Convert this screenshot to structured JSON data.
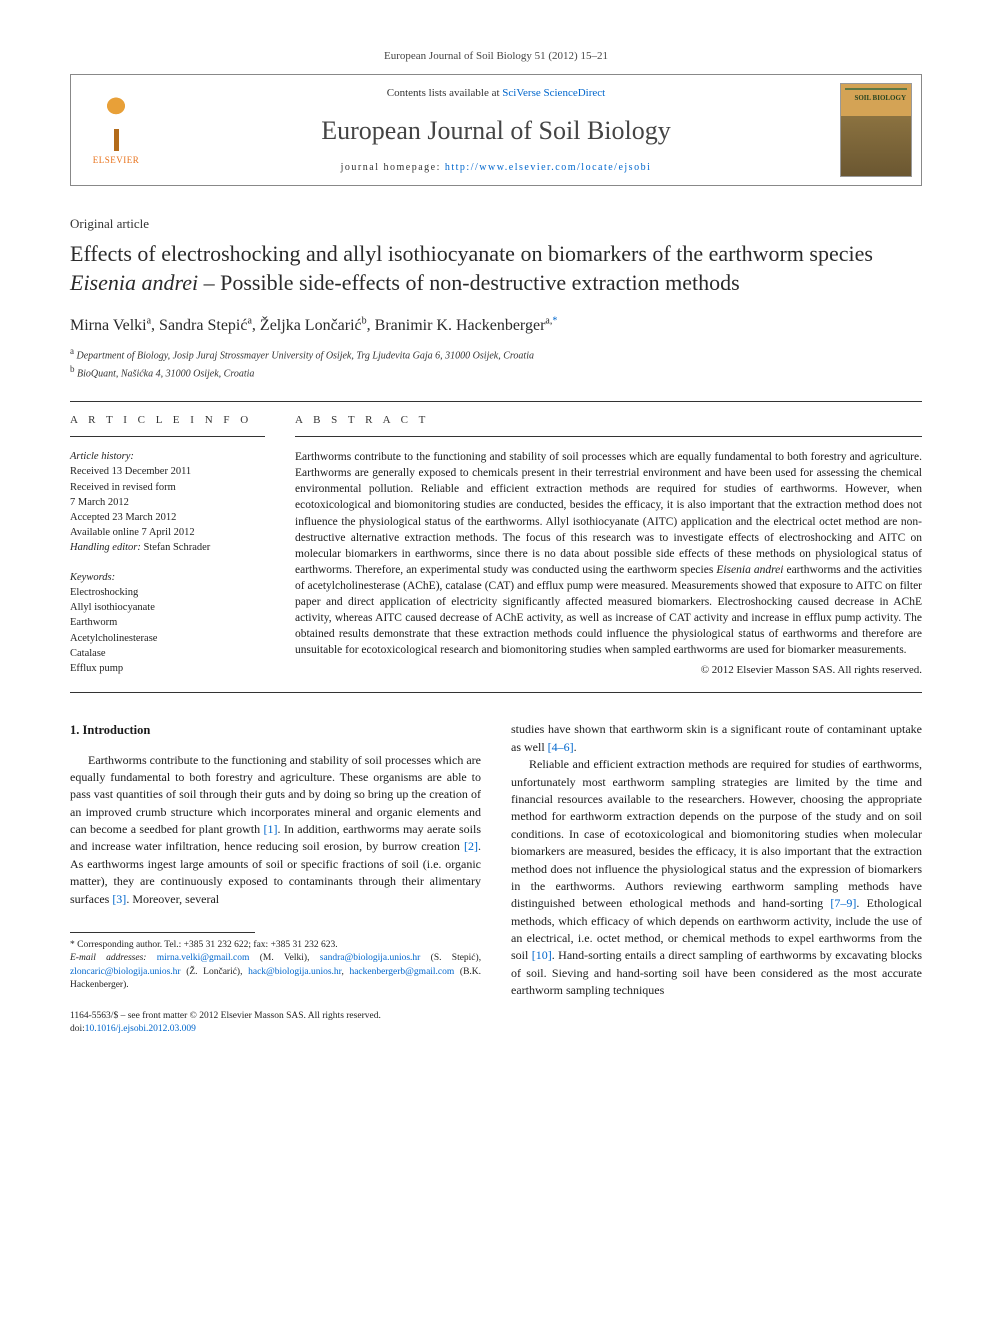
{
  "citation": "European Journal of Soil Biology 51 (2012) 15–21",
  "header": {
    "contents_prefix": "Contents lists available at ",
    "contents_link": "SciVerse ScienceDirect",
    "journal_name": "European Journal of Soil Biology",
    "homepage_prefix": "journal homepage: ",
    "homepage_url": "http://www.elsevier.com/locate/ejsobi",
    "publisher": "ELSEVIER",
    "cover_text": "SOIL\nBIOLOGY"
  },
  "article": {
    "type": "Original article",
    "title_pre": "Effects of electroshocking and allyl isothiocyanate on biomarkers of the earthworm species ",
    "title_italic": "Eisenia andrei",
    "title_post": " – Possible side-effects of non-destructive extraction methods",
    "authors_html": "Mirna Velki",
    "authors": [
      {
        "name": "Mirna Velki",
        "sup": "a"
      },
      {
        "name": "Sandra Stepić",
        "sup": "a"
      },
      {
        "name": "Željka Lončarić",
        "sup": "b"
      },
      {
        "name": "Branimir K. Hackenberger",
        "sup": "a,",
        "corr": "*"
      }
    ],
    "affiliations": [
      {
        "sup": "a",
        "text": "Department of Biology, Josip Juraj Strossmayer University of Osijek, Trg Ljudevita Gaja 6, 31000 Osijek, Croatia"
      },
      {
        "sup": "b",
        "text": "BioQuant, Našićka 4, 31000 Osijek, Croatia"
      }
    ]
  },
  "info": {
    "section_label": "A R T I C L E   I N F O",
    "history_label": "Article history:",
    "history": [
      "Received 13 December 2011",
      "Received in revised form",
      "7 March 2012",
      "Accepted 23 March 2012",
      "Available online 7 April 2012"
    ],
    "handling_prefix": "Handling editor: ",
    "handling_editor": "Stefan Schrader",
    "keywords_label": "Keywords:",
    "keywords": [
      "Electroshocking",
      "Allyl isothiocyanate",
      "Earthworm",
      "Acetylcholinesterase",
      "Catalase",
      "Efflux pump"
    ]
  },
  "abstract": {
    "section_label": "A B S T R A C T",
    "text_1": "Earthworms contribute to the functioning and stability of soil processes which are equally fundamental to both forestry and agriculture. Earthworms are generally exposed to chemicals present in their terrestrial environment and have been used for assessing the chemical environmental pollution. Reliable and efficient extraction methods are required for studies of earthworms. However, when ecotoxicological and biomonitoring studies are conducted, besides the efficacy, it is also important that the extraction method does not influence the physiological status of the earthworms. Allyl isothiocyanate (AITC) application and the electrical octet method are non-destructive alternative extraction methods. The focus of this research was to investigate effects of electroshocking and AITC on molecular biomarkers in earthworms, since there is no data about possible side effects of these methods on physiological status of earthworms. Therefore, an experimental study was conducted using the earthworm species ",
    "text_italic": "Eisenia andrei",
    "text_2": " earthworms and the activities of acetylcholinesterase (AChE), catalase (CAT) and efflux pump were measured. Measurements showed that exposure to AITC on filter paper and direct application of electricity significantly affected measured biomarkers. Electroshocking caused decrease in AChE activity, whereas AITC caused decrease of AChE activity, as well as increase of CAT activity and increase in efflux pump activity. The obtained results demonstrate that these extraction methods could influence the physiological status of earthworms and therefore are unsuitable for ecotoxicological research and biomonitoring studies when sampled earthworms are used for biomarker measurements.",
    "copyright": "© 2012 Elsevier Masson SAS. All rights reserved."
  },
  "body": {
    "heading": "1. Introduction",
    "col1_p1_a": "Earthworms contribute to the functioning and stability of soil processes which are equally fundamental to both forestry and agriculture. These organisms are able to pass vast quantities of soil through their guts and by doing so bring up the creation of an improved crumb structure which incorporates mineral and organic elements and can become a seedbed for plant growth ",
    "ref1": "[1]",
    "col1_p1_b": ". In addition, earthworms may aerate soils and increase water infiltration, hence reducing soil erosion, by burrow creation ",
    "ref2": "[2]",
    "col1_p1_c": ". As earthworms ingest large amounts of soil or specific fractions of soil (i.e. organic matter), they are continuously exposed to contaminants through their alimentary surfaces ",
    "ref3": "[3]",
    "col1_p1_d": ". Moreover, several",
    "col2_p1_a": "studies have shown that earthworm skin is a significant route of contaminant uptake as well ",
    "ref46": "[4–6]",
    "col2_p1_b": ".",
    "col2_p2_a": "Reliable and efficient extraction methods are required for studies of earthworms, unfortunately most earthworm sampling strategies are limited by the time and financial resources available to the researchers. However, choosing the appropriate method for earthworm extraction depends on the purpose of the study and on soil conditions. In case of ecotoxicological and biomonitoring studies when molecular biomarkers are measured, besides the efficacy, it is also important that the extraction method does not influence the physiological status and the expression of biomarkers in the earthworms. Authors reviewing earthworm sampling methods have distinguished between ethological methods and hand-sorting ",
    "ref79": "[7–9]",
    "col2_p2_b": ". Ethological methods, which efficacy of which depends on earthworm activity, include the use of an electrical, i.e. octet method, or chemical methods to expel earthworms from the soil ",
    "ref10": "[10]",
    "col2_p2_c": ". Hand-sorting entails a direct sampling of earthworms by excavating blocks of soil. Sieving and hand-sorting soil have been considered as the most accurate earthworm sampling techniques"
  },
  "footnotes": {
    "corr": "* Corresponding author. Tel.: +385 31 232 622; fax: +385 31 232 623.",
    "email_label": "E-mail addresses:",
    "emails": [
      {
        "addr": "mirna.velki@gmail.com",
        "who": "(M. Velki)"
      },
      {
        "addr": "sandra@biologija.unios.hr",
        "who": "(S. Stepić)"
      },
      {
        "addr": "zloncaric@biologija.unios.hr",
        "who": "(Ž. Lončarić)"
      },
      {
        "addr": "hack@biologija.unios.hr",
        "who": ""
      },
      {
        "addr": "hackenbergerb@gmail.com",
        "who": "(B.K. Hackenberger)."
      }
    ]
  },
  "bottom": {
    "line1": "1164-5563/$ – see front matter © 2012 Elsevier Masson SAS. All rights reserved.",
    "doi_prefix": "doi:",
    "doi": "10.1016/j.ejsobi.2012.03.009"
  },
  "colors": {
    "link": "#0066cc",
    "text": "#1a1a1a",
    "elsevier_orange": "#e8711a"
  }
}
